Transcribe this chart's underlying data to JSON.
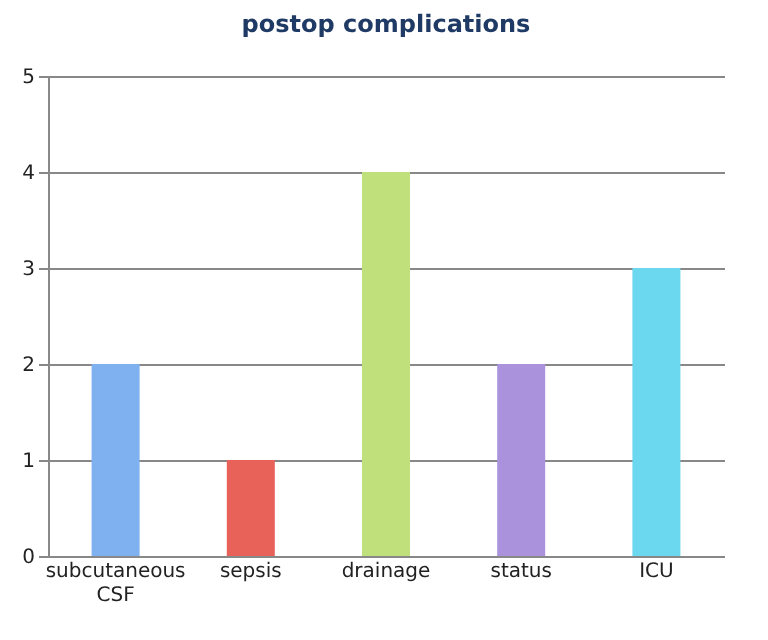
{
  "chart_data": {
    "type": "bar",
    "title": "postop complications",
    "categories": [
      "subcutaneous CSF",
      "sepsis",
      "drainage",
      "status",
      "ICU"
    ],
    "values": [
      2,
      1,
      4,
      2,
      3
    ],
    "colors": [
      "#7fb0f0",
      "#e8625a",
      "#bfe07a",
      "#ab92dc",
      "#6cd8ef"
    ],
    "ylim": [
      0,
      5
    ],
    "yticks": [
      0,
      1,
      2,
      3,
      4,
      5
    ],
    "grid": "y",
    "legend": false
  }
}
